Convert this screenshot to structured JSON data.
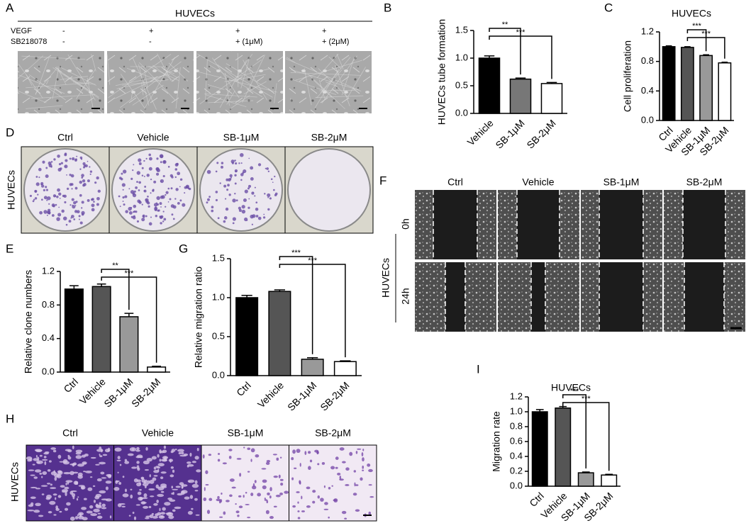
{
  "panels": {
    "A": {
      "label": "A",
      "title": "HUVECs",
      "rows": [
        {
          "name": "VEGF",
          "values": [
            "-",
            "+",
            "+",
            "+"
          ]
        },
        {
          "name": "SB218078",
          "values": [
            "-",
            "-",
            "+ (1μM)",
            "+ (2μM)"
          ]
        }
      ]
    },
    "D": {
      "label": "D",
      "columns": [
        "Ctrl",
        "Vehicle",
        "SB-1μM",
        "SB-2μM"
      ],
      "row_label": "HUVECs"
    },
    "F": {
      "label": "F",
      "columns": [
        "Ctrl",
        "Vehicle",
        "SB-1μM",
        "SB-2μM"
      ],
      "rows": [
        "0h",
        "24h"
      ],
      "side_label": "HUVECs"
    },
    "H": {
      "label": "H",
      "columns": [
        "Ctrl",
        "Vehicle",
        "SB-1μM",
        "SB-2μM"
      ],
      "side_label": "HUVECs"
    }
  },
  "chart_data": [
    {
      "type": "bar",
      "panel": "B",
      "ylabel": "HUVECs tube formation",
      "categories": [
        "Vehicle",
        "SB-1μM",
        "SB-2μM"
      ],
      "values": [
        1.0,
        0.62,
        0.54
      ],
      "errors": [
        0.04,
        0.02,
        0.02
      ],
      "colors": [
        "#000000",
        "#777777",
        "#ffffff"
      ],
      "ylim": [
        0,
        1.5
      ],
      "yticks": [
        {
          "value": 0,
          "label": "0.0"
        },
        0.5,
        {
          "value": 1,
          "label": "1.0"
        },
        1.5
      ],
      "significance": [
        {
          "label": "**",
          "pair": [
            0,
            1
          ]
        },
        {
          "label": "***",
          "pair": [
            0,
            2
          ]
        }
      ]
    },
    {
      "type": "bar",
      "panel": "C",
      "title": "HUVECs",
      "ylabel": "Cell proliferation",
      "categories": [
        "Ctrl",
        "Vehicle",
        "SB-1μM",
        "SB-2μM"
      ],
      "values": [
        1.0,
        0.99,
        0.88,
        0.78
      ],
      "errors": [
        0.01,
        0.01,
        0.01,
        0.01
      ],
      "colors": [
        "#000000",
        "#555555",
        "#999999",
        "#ffffff"
      ],
      "ylim": [
        0,
        1.2
      ],
      "yticks": [
        {
          "value": 0,
          "label": "0.0"
        },
        0.4,
        0.8,
        1.2
      ],
      "significance": [
        {
          "label": "***",
          "pair": [
            1,
            2
          ]
        },
        {
          "label": "***",
          "pair": [
            1,
            3
          ]
        }
      ]
    },
    {
      "type": "bar",
      "panel": "E",
      "ylabel": "Relative clone numbers",
      "categories": [
        "Ctrl",
        "Vehicle",
        "SB-1μM",
        "SB-2μM"
      ],
      "values": [
        0.99,
        1.02,
        0.66,
        0.06
      ],
      "errors": [
        0.04,
        0.03,
        0.04,
        0.01
      ],
      "colors": [
        "#000000",
        "#555555",
        "#999999",
        "#ffffff"
      ],
      "ylim": [
        0,
        1.2
      ],
      "yticks": [
        {
          "value": 0,
          "label": "0.0"
        },
        0.4,
        0.8,
        1.2
      ],
      "significance": [
        {
          "label": "**",
          "pair": [
            1,
            2
          ]
        },
        {
          "label": "***",
          "pair": [
            1,
            3
          ]
        }
      ]
    },
    {
      "type": "bar",
      "panel": "G",
      "ylabel": "Relative migration ratio",
      "categories": [
        "Ctrl",
        "Vehicle",
        "SB-1μM",
        "SB-2μM"
      ],
      "values": [
        1.0,
        1.08,
        0.21,
        0.18
      ],
      "errors": [
        0.03,
        0.02,
        0.02,
        0.01
      ],
      "colors": [
        "#000000",
        "#555555",
        "#999999",
        "#ffffff"
      ],
      "ylim": [
        0,
        1.5
      ],
      "yticks": [
        {
          "value": 0,
          "label": "0.0"
        },
        0.5,
        {
          "value": 1,
          "label": "1.0"
        },
        1.5
      ],
      "significance": [
        {
          "label": "***",
          "pair": [
            1,
            2
          ]
        },
        {
          "label": "***",
          "pair": [
            1,
            3
          ]
        }
      ]
    },
    {
      "type": "bar",
      "panel": "I",
      "title": "HUVECs",
      "ylabel": "Migration rate",
      "categories": [
        "Ctrl",
        "Vehicle",
        "SB-1μM",
        "SB-2μM"
      ],
      "values": [
        1.0,
        1.05,
        0.18,
        0.15
      ],
      "errors": [
        0.03,
        0.02,
        0.01,
        0.01
      ],
      "colors": [
        "#000000",
        "#555555",
        "#999999",
        "#ffffff"
      ],
      "ylim": [
        0,
        1.2
      ],
      "yticks": [
        {
          "value": 0,
          "label": "0.0"
        },
        0.2,
        0.4,
        0.6,
        0.8,
        {
          "value": 1,
          "label": "1.0"
        },
        1.2
      ],
      "significance": [
        {
          "label": "***",
          "pair": [
            1,
            2
          ]
        },
        {
          "label": "***",
          "pair": [
            1,
            3
          ]
        }
      ]
    }
  ]
}
